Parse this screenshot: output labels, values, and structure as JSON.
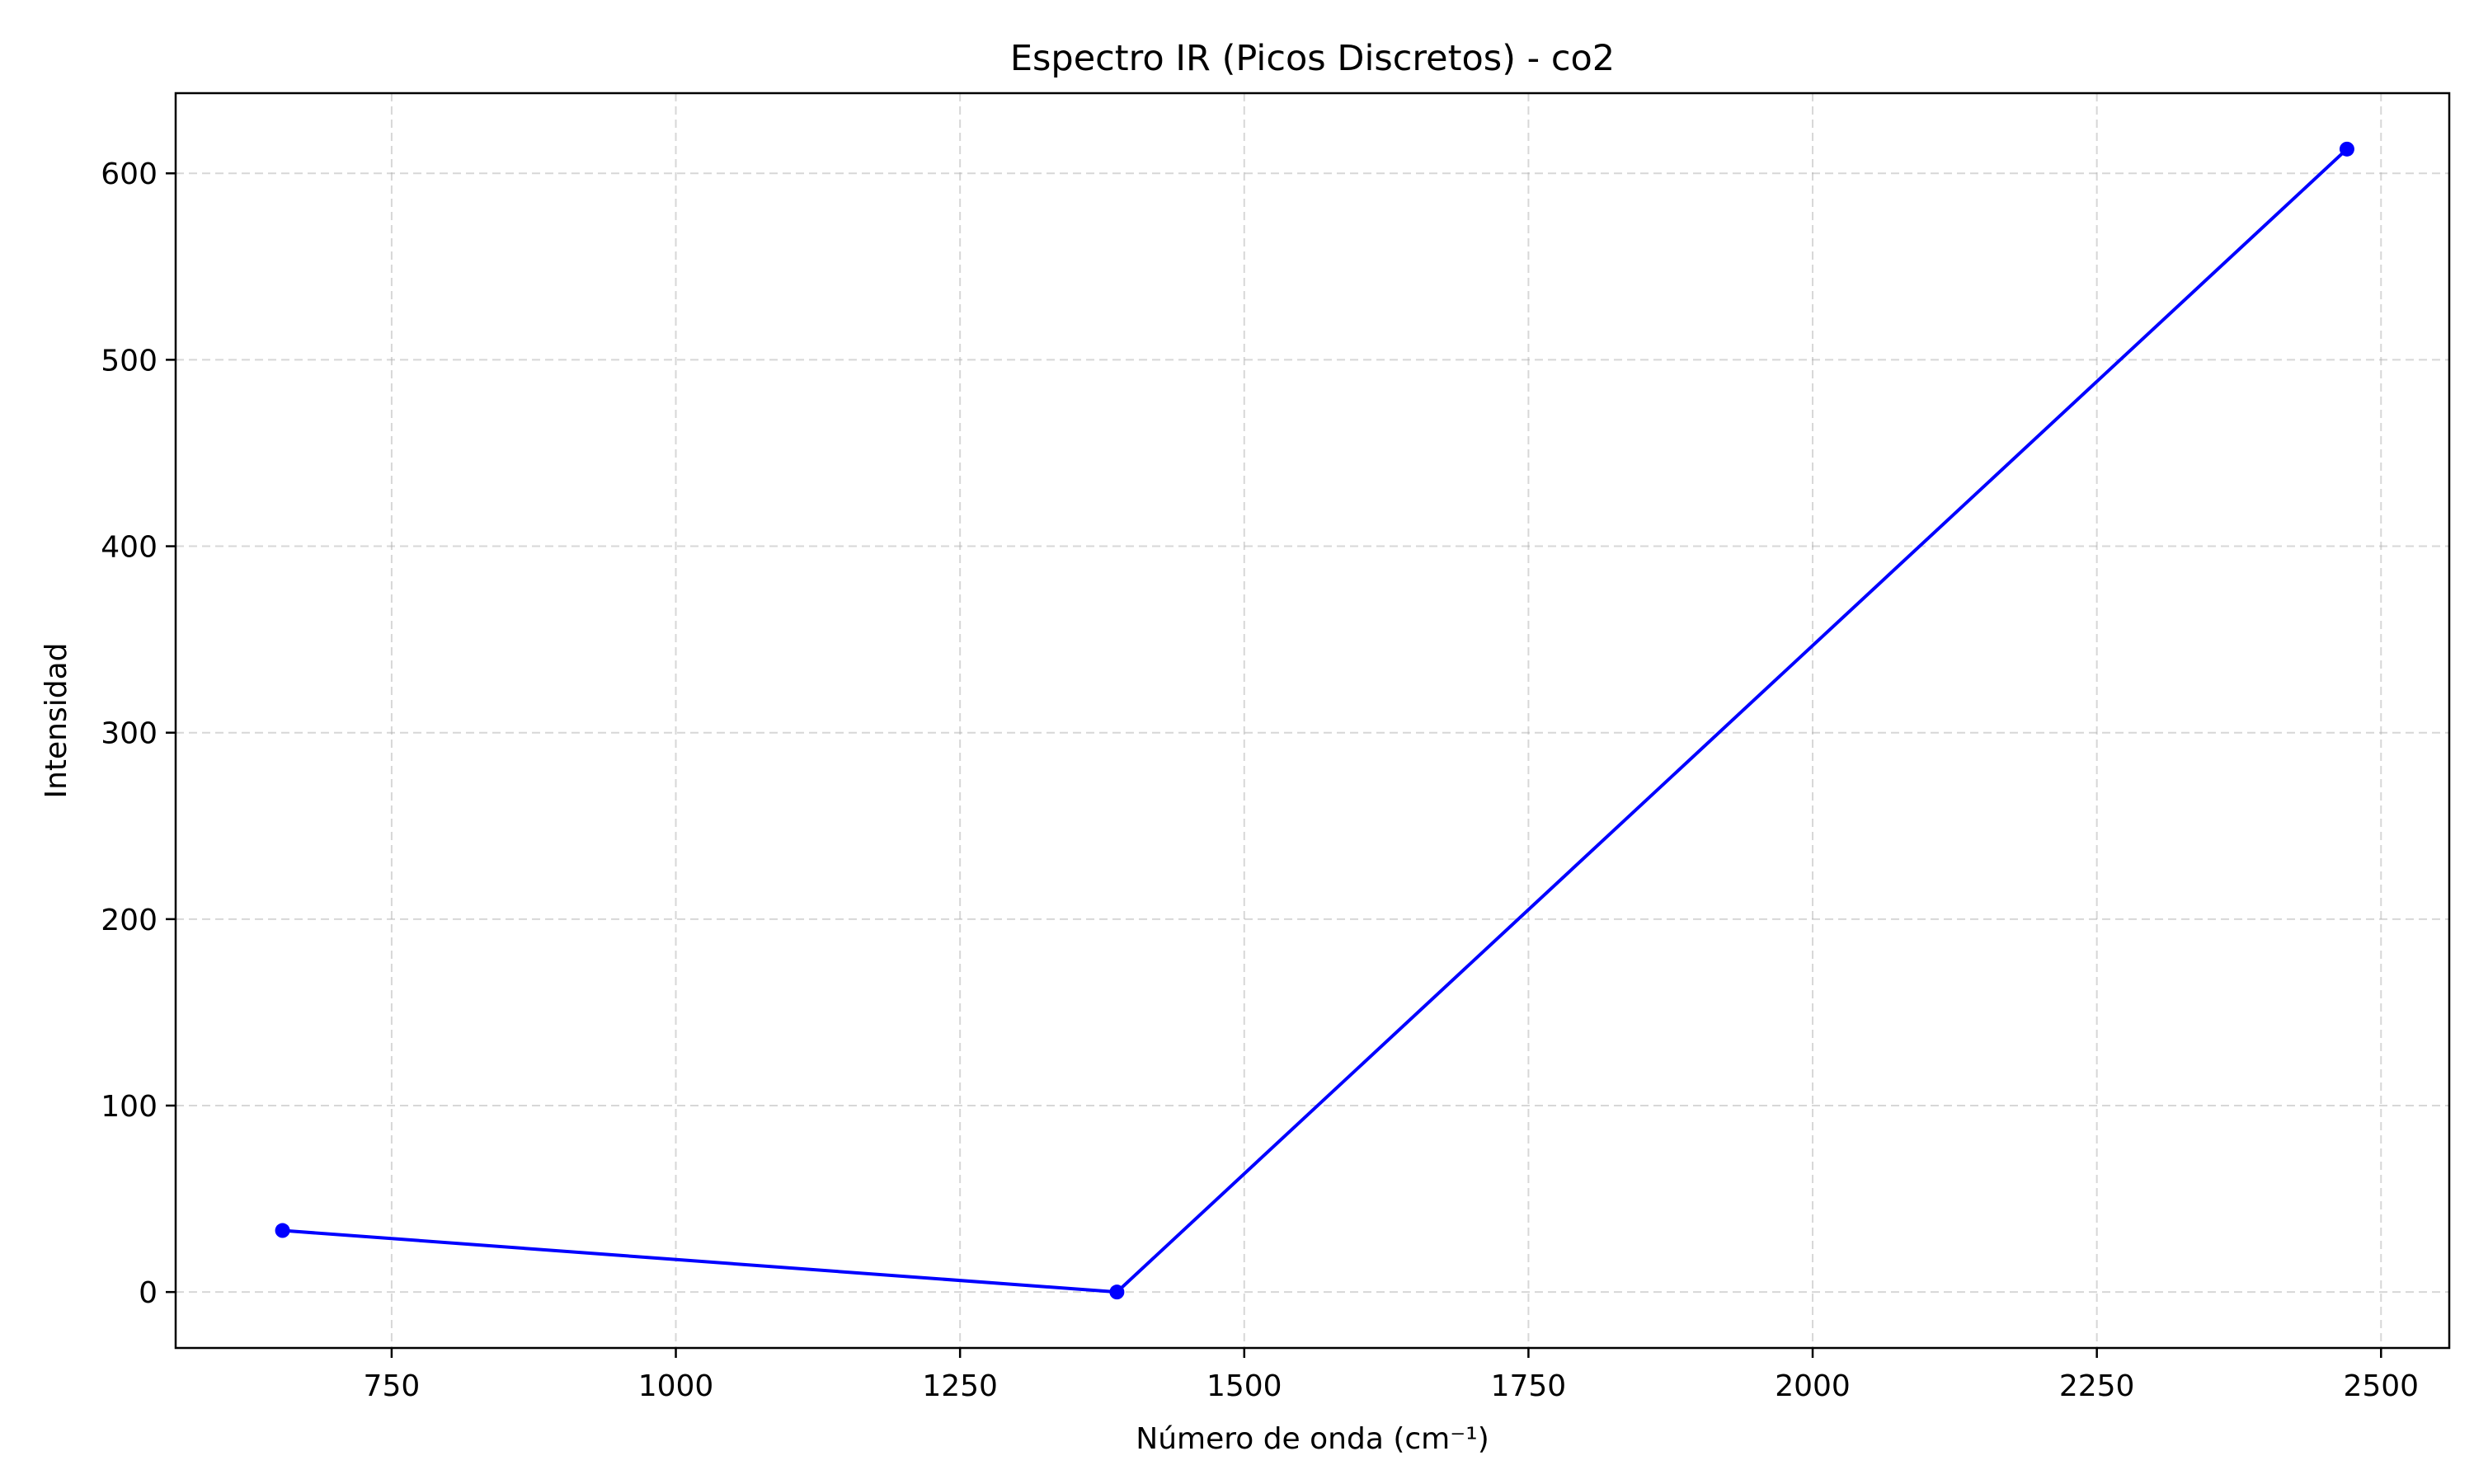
{
  "chart_data": {
    "type": "line",
    "title": "Espectro IR (Picos Discretos) - co2",
    "xlabel": "Número de onda (cm⁻¹)",
    "ylabel": "Intensidad",
    "xlim": [
      560,
      2560
    ],
    "ylim": [
      -30,
      643
    ],
    "xticks": [
      750,
      1000,
      1250,
      1500,
      1750,
      2000,
      2250,
      2500
    ],
    "xtick_labels": [
      "750",
      "1000",
      "1250",
      "1500",
      "1750",
      "2000",
      "2250",
      "2500"
    ],
    "yticks": [
      0,
      100,
      200,
      300,
      400,
      500,
      600
    ],
    "ytick_labels": [
      "0",
      "100",
      "200",
      "300",
      "400",
      "500",
      "600"
    ],
    "grid": true,
    "series": [
      {
        "color": "#0000ff",
        "marker": "circle",
        "x": [
          654,
          1388,
          2470
        ],
        "y": [
          33,
          0,
          613
        ]
      }
    ]
  }
}
